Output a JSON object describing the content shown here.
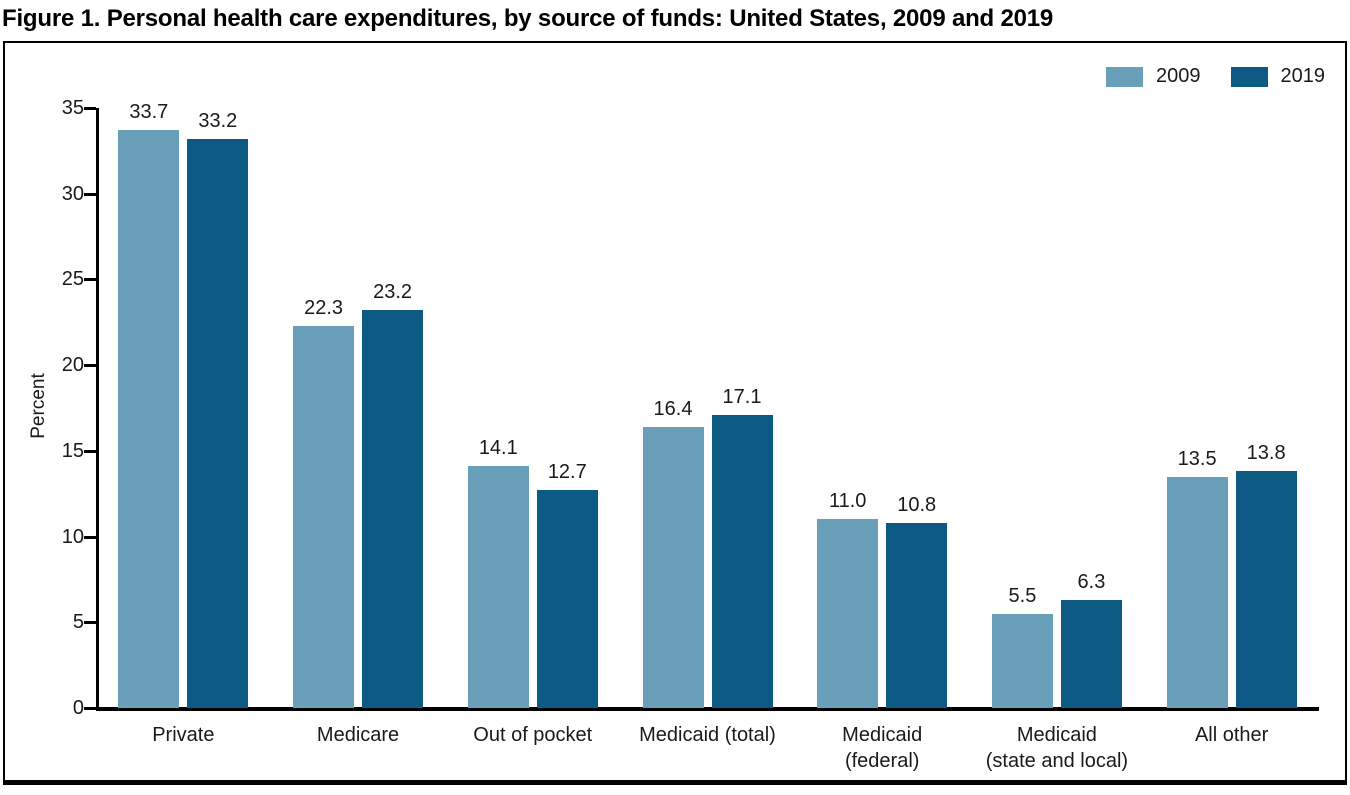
{
  "title": "Figure 1. Personal health care expenditures, by source of funds: United States, 2009 and 2019",
  "chart_data": {
    "type": "bar",
    "title": "Figure 1. Personal health care expenditures, by source of funds: United States, 2009 and 2019",
    "xlabel": "",
    "ylabel": "Percent",
    "ylim": [
      0,
      35
    ],
    "yticks": [
      0,
      5,
      10,
      15,
      20,
      25,
      30,
      35
    ],
    "grid": false,
    "legend_position": "top-right",
    "value_labels": true,
    "categories": [
      "Private",
      "Medicare",
      "Out of pocket",
      "Medicaid (total)",
      "Medicaid\n(federal)",
      "Medicaid\n(state and local)",
      "All other"
    ],
    "series": [
      {
        "name": "2009",
        "color": "#6A9FBA",
        "values": [
          33.7,
          22.3,
          14.1,
          16.4,
          11.0,
          5.5,
          13.5
        ]
      },
      {
        "name": "2019",
        "color": "#0D5A85",
        "values": [
          33.2,
          23.2,
          12.7,
          17.1,
          10.8,
          6.3,
          13.8
        ]
      }
    ]
  },
  "colors": {
    "series_2009": "#6A9FBA",
    "series_2019": "#0D5A85",
    "axis": "#000000",
    "text": "#1a1a1a"
  }
}
